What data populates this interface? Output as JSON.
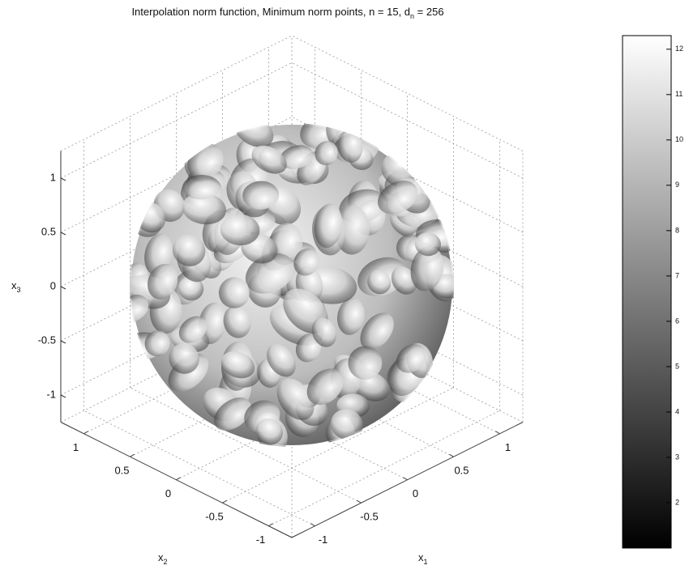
{
  "chart_data": {
    "type": "surface3d",
    "title": "Interpolation norm function, Minimum norm points, n = 15, d",
    "title_subscript": "n",
    "title_suffix": " = 256",
    "x_label": "x",
    "x_label_sub": "1",
    "y_label": "x",
    "y_label_sub": "2",
    "z_label": "x",
    "z_label_sub": "3",
    "xlim": [
      -1.25,
      1.25
    ],
    "xticks": [
      -1,
      -0.5,
      0,
      0.5,
      1
    ],
    "ylim": [
      -1.25,
      1.25
    ],
    "yticks": [
      -1,
      -0.5,
      0,
      0.5,
      1
    ],
    "zlim": [
      -1.25,
      1.25
    ],
    "zticks": [
      -1,
      -0.5,
      0,
      0.5,
      1
    ],
    "grid": true,
    "colormap": "gray",
    "clim": [
      1,
      12.3
    ],
    "cticks": [
      2,
      3,
      4,
      5,
      6,
      7,
      8,
      9,
      10,
      11,
      12
    ]
  }
}
